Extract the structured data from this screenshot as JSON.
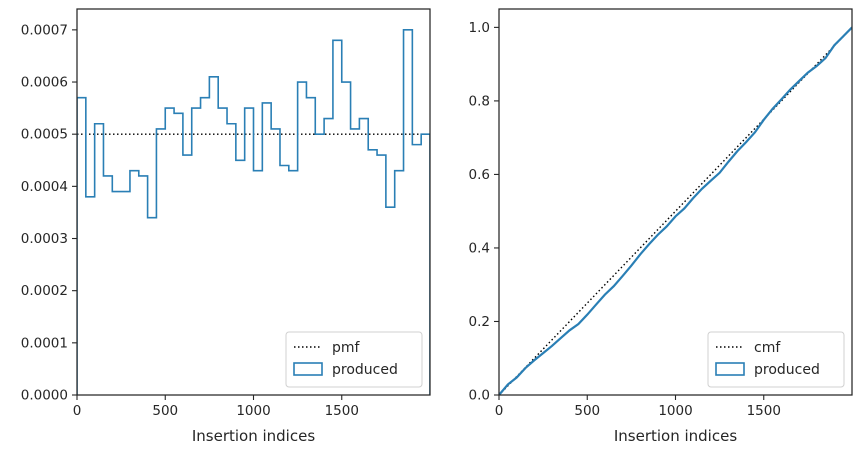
{
  "chart_data": [
    {
      "type": "line",
      "subtype": "step-histogram",
      "xlabel": "Insertion indices",
      "ylabel": "",
      "xlim": [
        0,
        2000
      ],
      "ylim": [
        0,
        0.00074
      ],
      "xticks": [
        0,
        500,
        1000,
        1500
      ],
      "xtick_labels": [
        "0",
        "500",
        "1000",
        "1500"
      ],
      "yticks": [
        0,
        0.0001,
        0.0002,
        0.0003,
        0.0004,
        0.0005,
        0.0006,
        0.0007
      ],
      "ytick_labels": [
        "0.0000",
        "0.0001",
        "0.0002",
        "0.0003",
        "0.0004",
        "0.0005",
        "0.0006",
        "0.0007"
      ],
      "grid": false,
      "legend_position": "lower right",
      "bin_edges": [
        0,
        50,
        100,
        150,
        200,
        250,
        300,
        350,
        400,
        450,
        500,
        550,
        600,
        650,
        700,
        750,
        800,
        850,
        900,
        950,
        1000,
        1050,
        1100,
        1150,
        1200,
        1250,
        1300,
        1350,
        1400,
        1450,
        1500,
        1550,
        1600,
        1650,
        1700,
        1750,
        1800,
        1850,
        1900,
        1950,
        2000
      ],
      "series": [
        {
          "name": "pmf",
          "style": "dotted",
          "color": "#000000",
          "x": [
            0,
            2000
          ],
          "values": [
            0.0005,
            0.0005
          ]
        },
        {
          "name": "produced",
          "style": "step",
          "color": "#2a7fb5",
          "values": [
            0.00057,
            0.00038,
            0.00052,
            0.00042,
            0.00039,
            0.00039,
            0.00043,
            0.00042,
            0.00034,
            0.00051,
            0.00055,
            0.00054,
            0.00046,
            0.00055,
            0.00057,
            0.00061,
            0.00055,
            0.00052,
            0.00045,
            0.00055,
            0.00043,
            0.00056,
            0.00051,
            0.00044,
            0.00043,
            0.0006,
            0.00057,
            0.0005,
            0.00053,
            0.00068,
            0.0006,
            0.00051,
            0.00053,
            0.00047,
            0.00046,
            0.00036,
            0.00043,
            0.0007,
            0.00048,
            0.0005
          ]
        }
      ]
    },
    {
      "type": "line",
      "xlabel": "Insertion indices",
      "ylabel": "",
      "xlim": [
        0,
        2000
      ],
      "ylim": [
        0,
        1.05
      ],
      "xticks": [
        0,
        500,
        1000,
        1500
      ],
      "xtick_labels": [
        "0",
        "500",
        "1000",
        "1500"
      ],
      "yticks": [
        0,
        0.2,
        0.4,
        0.6,
        0.8,
        1.0
      ],
      "ytick_labels": [
        "0.0",
        "0.2",
        "0.4",
        "0.6",
        "0.8",
        "1.0"
      ],
      "grid": false,
      "legend_position": "lower right",
      "series": [
        {
          "name": "cmf",
          "style": "dotted",
          "color": "#000000",
          "x": [
            0,
            2000
          ],
          "values": [
            0,
            1
          ]
        },
        {
          "name": "produced",
          "style": "solid",
          "color": "#2a7fb5",
          "x": [
            0,
            50,
            100,
            150,
            200,
            250,
            300,
            350,
            400,
            450,
            500,
            550,
            600,
            650,
            700,
            750,
            800,
            850,
            900,
            950,
            1000,
            1050,
            1100,
            1150,
            1200,
            1250,
            1300,
            1350,
            1400,
            1450,
            1500,
            1550,
            1600,
            1650,
            1700,
            1750,
            1800,
            1850,
            1900,
            1950,
            2000
          ],
          "values": [
            0,
            0.0285,
            0.0475,
            0.0735,
            0.0945,
            0.114,
            0.1335,
            0.155,
            0.176,
            0.193,
            0.2185,
            0.246,
            0.273,
            0.296,
            0.3235,
            0.352,
            0.3825,
            0.41,
            0.436,
            0.4585,
            0.486,
            0.5075,
            0.5355,
            0.561,
            0.583,
            0.6045,
            0.6345,
            0.663,
            0.688,
            0.7145,
            0.7485,
            0.7785,
            0.804,
            0.8305,
            0.854,
            0.877,
            0.895,
            0.9165,
            0.9515,
            0.9755,
            1.0
          ]
        }
      ]
    }
  ]
}
